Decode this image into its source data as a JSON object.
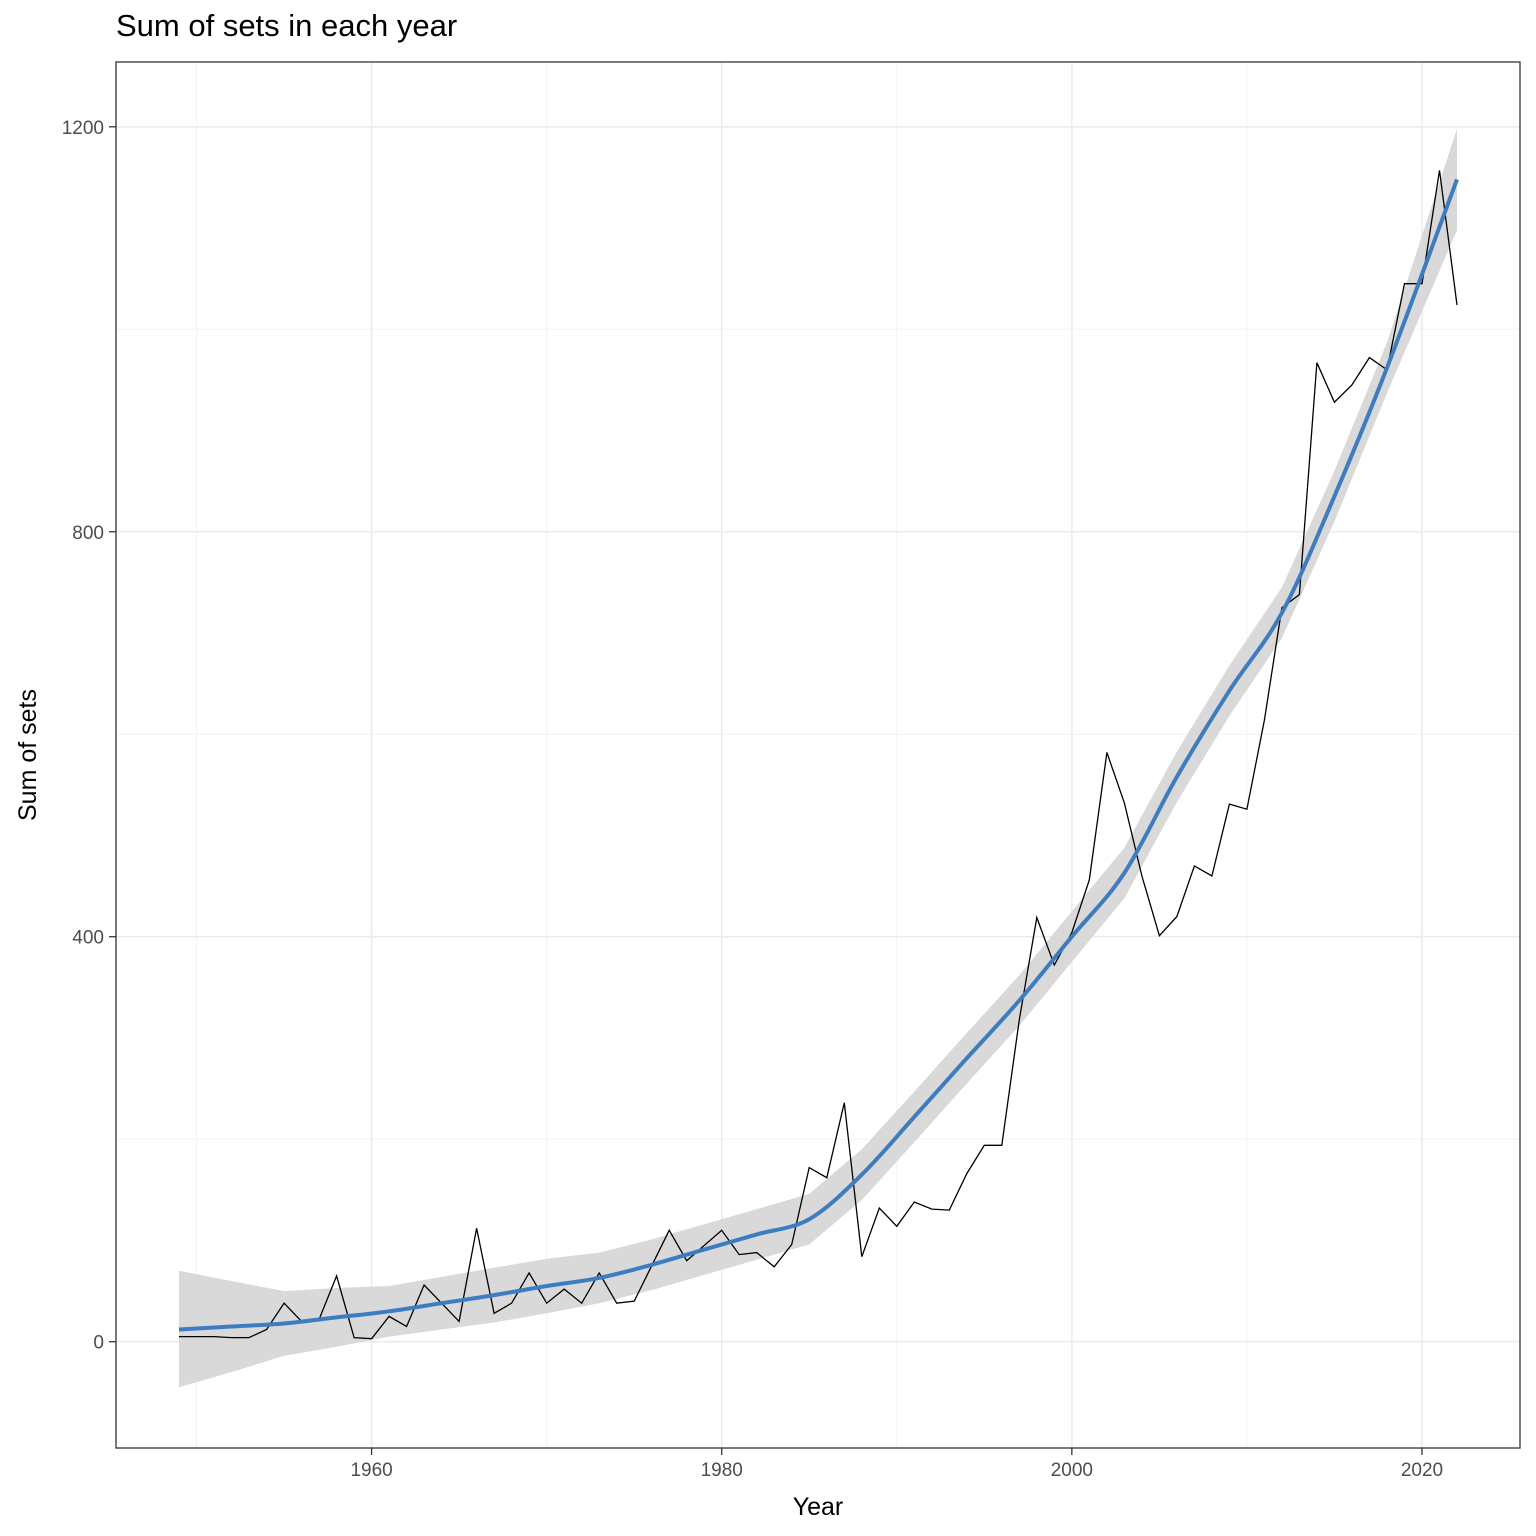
{
  "chart_data": {
    "type": "line",
    "title": "Sum of sets in each year",
    "xlabel": "Year",
    "ylabel": "Sum of sets",
    "xlim": [
      1945.4,
      2025.6
    ],
    "ylim": [
      -105,
      1264
    ],
    "x_ticks": [
      1960,
      1980,
      2000,
      2020
    ],
    "y_ticks": [
      0,
      400,
      800,
      1200
    ],
    "grid": true,
    "series": [
      {
        "type": "line",
        "color": "#000000",
        "x": [
          1949,
          1950,
          1951,
          1952,
          1953,
          1954,
          1955,
          1956,
          1957,
          1958,
          1959,
          1960,
          1961,
          1962,
          1963,
          1964,
          1965,
          1966,
          1967,
          1968,
          1969,
          1970,
          1971,
          1972,
          1973,
          1974,
          1975,
          1976,
          1977,
          1978,
          1979,
          1980,
          1981,
          1982,
          1983,
          1984,
          1985,
          1986,
          1987,
          1988,
          1989,
          1990,
          1991,
          1992,
          1993,
          1994,
          1995,
          1996,
          1997,
          1998,
          1999,
          2000,
          2001,
          2002,
          2003,
          2004,
          2005,
          2006,
          2007,
          2008,
          2009,
          2010,
          2011,
          2012,
          2013,
          2014,
          2015,
          2016,
          2017,
          2018,
          2019,
          2020,
          2021,
          2022
        ],
        "y": [
          5,
          5,
          5,
          4,
          4,
          12,
          38,
          20,
          22,
          65,
          4,
          3,
          25,
          15,
          56,
          38,
          20,
          112,
          28,
          38,
          68,
          38,
          52,
          38,
          68,
          38,
          40,
          75,
          110,
          80,
          95,
          110,
          86,
          88,
          74,
          96,
          172,
          162,
          236,
          84,
          132,
          114,
          138,
          131,
          130,
          166,
          194,
          194,
          318,
          419,
          372,
          404,
          456,
          582,
          532,
          460,
          401,
          420,
          470,
          460,
          531,
          526,
          614,
          725,
          738,
          967,
          928,
          945,
          972,
          960,
          1045,
          1045,
          1157,
          1024
        ]
      },
      {
        "type": "smooth",
        "color": "#3e7cc0",
        "band_color": "#d9d9d9",
        "x": [
          1949,
          1952,
          1955,
          1958,
          1961,
          1964,
          1967,
          1970,
          1973,
          1976,
          1979,
          1982,
          1985,
          1988,
          1991,
          1994,
          1997,
          2000,
          2003,
          2006,
          2009,
          2012,
          2015,
          2018,
          2022
        ],
        "y": [
          12,
          15,
          18,
          24,
          30,
          38,
          46,
          55,
          63,
          76,
          91,
          106,
          121,
          165,
          222,
          280,
          337,
          400,
          463,
          558,
          643,
          720,
          835,
          962,
          1148
        ],
        "lower": [
          -45,
          -30,
          -14,
          -5,
          5,
          12,
          19,
          28,
          38,
          51,
          66,
          81,
          96,
          140,
          197,
          255,
          312,
          375,
          438,
          533,
          618,
          695,
          810,
          937,
          1098
        ],
        "upper": [
          70,
          60,
          50,
          53,
          55,
          64,
          73,
          82,
          88,
          101,
          116,
          131,
          146,
          190,
          247,
          305,
          362,
          425,
          488,
          583,
          668,
          745,
          860,
          987,
          1198
        ]
      }
    ]
  }
}
